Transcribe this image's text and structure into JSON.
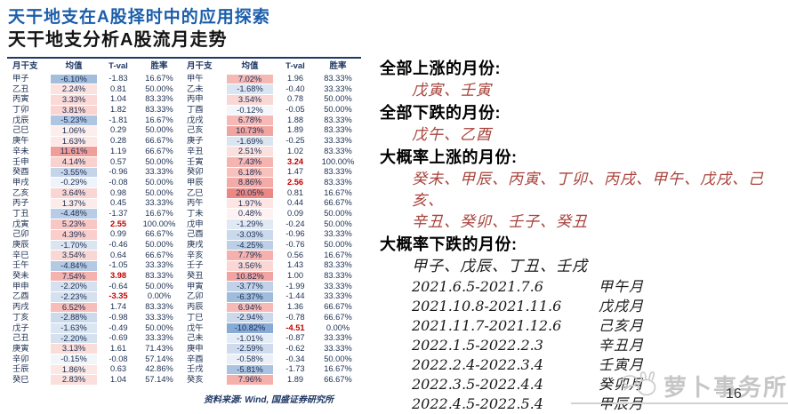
{
  "header": {
    "title": "天干地支在A股择时中的应用探索",
    "subtitle": "天干地支分析A股流月走势"
  },
  "colors": {
    "title_blue": "#1b5eab",
    "table_navy": "#1f3864",
    "tval_red": "#c00000",
    "panel_red": "#a8423a",
    "watermark_gray": "#c6c6c6"
  },
  "table": {
    "columns": [
      "月干支",
      "均值",
      "T-val",
      "胜率"
    ],
    "source": "资料来源: Wind, 国盛证券研究所",
    "left_rows": [
      {
        "g": "甲子",
        "m": "-6.10%",
        "t": "-1.83",
        "w": "16.67%",
        "bg": "#a3bedd",
        "tr": false
      },
      {
        "g": "乙丑",
        "m": "2.24%",
        "t": "0.81",
        "w": "50.00%",
        "bg": "#fbe2e0",
        "tr": false
      },
      {
        "g": "丙寅",
        "m": "3.33%",
        "t": "1.04",
        "w": "83.33%",
        "bg": "#fad9d6",
        "tr": false
      },
      {
        "g": "丁卯",
        "m": "3.81%",
        "t": "1.82",
        "w": "83.33%",
        "bg": "#f9d4d1",
        "tr": false
      },
      {
        "g": "戊辰",
        "m": "-5.23%",
        "t": "-1.81",
        "w": "16.67%",
        "bg": "#afc6e2",
        "tr": false
      },
      {
        "g": "己巳",
        "m": "1.06%",
        "t": "0.29",
        "w": "50.00%",
        "bg": "#fceeec",
        "tr": false
      },
      {
        "g": "庚午",
        "m": "1.63%",
        "t": "0.28",
        "w": "66.67%",
        "bg": "#fce8e6",
        "tr": false
      },
      {
        "g": "辛未",
        "m": "11.61%",
        "t": "1.19",
        "w": "66.67%",
        "bg": "#f09e9a",
        "tr": false
      },
      {
        "g": "壬申",
        "m": "4.14%",
        "t": "0.57",
        "w": "50.00%",
        "bg": "#f9d1ce",
        "tr": false
      },
      {
        "g": "癸酉",
        "m": "-3.55%",
        "t": "-0.96",
        "w": "33.33%",
        "bg": "#c4d4e9",
        "tr": false
      },
      {
        "g": "甲戌",
        "m": "-0.29%",
        "t": "-0.08",
        "w": "50.00%",
        "bg": "#eff3fa",
        "tr": false
      },
      {
        "g": "乙亥",
        "m": "3.64%",
        "t": "0.98",
        "w": "50.00%",
        "bg": "#f9d6d3",
        "tr": false
      },
      {
        "g": "丙子",
        "m": "1.37%",
        "t": "0.45",
        "w": "33.33%",
        "bg": "#fcebe9",
        "tr": false
      },
      {
        "g": "丁丑",
        "m": "-4.48%",
        "t": "-1.37",
        "w": "16.67%",
        "bg": "#b8cce5",
        "tr": false
      },
      {
        "g": "戊寅",
        "m": "5.23%",
        "t": "2.55",
        "w": "100.00%",
        "bg": "#f8c7c3",
        "tr": true
      },
      {
        "g": "己卯",
        "m": "4.39%",
        "t": "0.99",
        "w": "66.67%",
        "bg": "#f9cecb",
        "tr": false
      },
      {
        "g": "庚辰",
        "m": "-1.70%",
        "t": "-0.46",
        "w": "50.00%",
        "bg": "#dbe5f2",
        "tr": false
      },
      {
        "g": "辛巳",
        "m": "3.54%",
        "t": "0.64",
        "w": "66.67%",
        "bg": "#f9d7d4",
        "tr": false
      },
      {
        "g": "壬午",
        "m": "-4.84%",
        "t": "-1.05",
        "w": "33.33%",
        "bg": "#b4cae3",
        "tr": false
      },
      {
        "g": "癸未",
        "m": "7.54%",
        "t": "3.98",
        "w": "83.33%",
        "bg": "#f5b3af",
        "tr": true
      },
      {
        "g": "甲申",
        "m": "-2.20%",
        "t": "-0.64",
        "w": "50.00%",
        "bg": "#d5e1ef",
        "tr": false
      },
      {
        "g": "乙酉",
        "m": "-2.23%",
        "t": "-3.35",
        "w": "0.00%",
        "bg": "#d5e1ef",
        "tr": true
      },
      {
        "g": "丙戌",
        "m": "6.52%",
        "t": "1.74",
        "w": "83.33%",
        "bg": "#f6bdb9",
        "tr": false
      },
      {
        "g": "丁亥",
        "m": "-2.88%",
        "t": "-0.98",
        "w": "33.33%",
        "bg": "#cddaec",
        "tr": false
      },
      {
        "g": "戊子",
        "m": "-1.63%",
        "t": "-0.49",
        "w": "50.00%",
        "bg": "#dce6f2",
        "tr": false
      },
      {
        "g": "己丑",
        "m": "-2.20%",
        "t": "-0.69",
        "w": "33.33%",
        "bg": "#d5e1ef",
        "tr": false
      },
      {
        "g": "庚寅",
        "m": "3.13%",
        "t": "1.61",
        "w": "71.43%",
        "bg": "#fadcd9",
        "tr": false
      },
      {
        "g": "辛卯",
        "m": "-0.15%",
        "t": "-0.08",
        "w": "57.14%",
        "bg": "#f2f5fa",
        "tr": false
      },
      {
        "g": "壬辰",
        "m": "1.86%",
        "t": "0.63",
        "w": "42.86%",
        "bg": "#fce7e5",
        "tr": false
      },
      {
        "g": "癸巳",
        "m": "2.83%",
        "t": "1.04",
        "w": "57.14%",
        "bg": "#fbdfdc",
        "tr": false
      }
    ],
    "right_rows": [
      {
        "g": "甲午",
        "m": "7.02%",
        "t": "1.96",
        "w": "83.33%",
        "bg": "#f5b8b4",
        "tr": false
      },
      {
        "g": "乙未",
        "m": "-1.68%",
        "t": "-0.40",
        "w": "33.33%",
        "bg": "#dbe5f2",
        "tr": false
      },
      {
        "g": "丙申",
        "m": "3.54%",
        "t": "0.78",
        "w": "50.00%",
        "bg": "#f9d7d4",
        "tr": false
      },
      {
        "g": "丁酉",
        "m": "-0.12%",
        "t": "-0.05",
        "w": "50.00%",
        "bg": "#f3f6fb",
        "tr": false
      },
      {
        "g": "戊戌",
        "m": "6.78%",
        "t": "1.88",
        "w": "83.33%",
        "bg": "#f6bab6",
        "tr": false
      },
      {
        "g": "己亥",
        "m": "10.73%",
        "t": "1.89",
        "w": "83.33%",
        "bg": "#f1a5a1",
        "tr": false
      },
      {
        "g": "庚子",
        "m": "-1.69%",
        "t": "-0.25",
        "w": "33.33%",
        "bg": "#dbe5f2",
        "tr": false
      },
      {
        "g": "辛丑",
        "m": "2.51%",
        "t": "1.02",
        "w": "83.33%",
        "bg": "#fbe1de",
        "tr": false
      },
      {
        "g": "壬寅",
        "m": "7.43%",
        "t": "3.24",
        "w": "100.00%",
        "bg": "#f5b4b0",
        "tr": true
      },
      {
        "g": "癸卯",
        "m": "6.18%",
        "t": "1.47",
        "w": "83.33%",
        "bg": "#f7c1bd",
        "tr": false
      },
      {
        "g": "甲辰",
        "m": "8.86%",
        "t": "2.56",
        "w": "83.33%",
        "bg": "#f3aba7",
        "tr": true
      },
      {
        "g": "乙巳",
        "m": "20.05%",
        "t": "0.81",
        "w": "16.67%",
        "bg": "#ec8782",
        "tr": false
      },
      {
        "g": "丙午",
        "m": "1.97%",
        "t": "0.44",
        "w": "66.67%",
        "bg": "#fce5e3",
        "tr": false
      },
      {
        "g": "丁未",
        "m": "0.48%",
        "t": "0.09",
        "w": "50.00%",
        "bg": "#fdf2f1",
        "tr": false
      },
      {
        "g": "戊申",
        "m": "-1.29%",
        "t": "-0.24",
        "w": "50.00%",
        "bg": "#e1e9f4",
        "tr": false
      },
      {
        "g": "己酉",
        "m": "-3.03%",
        "t": "-0.96",
        "w": "33.33%",
        "bg": "#cbd9ec",
        "tr": false
      },
      {
        "g": "庚戌",
        "m": "-4.25%",
        "t": "-0.76",
        "w": "50.00%",
        "bg": "#bbcfe6",
        "tr": false
      },
      {
        "g": "辛亥",
        "m": "7.79%",
        "t": "0.56",
        "w": "16.67%",
        "bg": "#f5b1ad",
        "tr": false
      },
      {
        "g": "壬子",
        "m": "3.56%",
        "t": "1.43",
        "w": "83.33%",
        "bg": "#f9d7d4",
        "tr": false
      },
      {
        "g": "癸丑",
        "m": "10.82%",
        "t": "1.00",
        "w": "83.33%",
        "bg": "#f1a4a0",
        "tr": false
      },
      {
        "g": "甲寅",
        "m": "-3.77%",
        "t": "-1.99",
        "w": "33.33%",
        "bg": "#c1d2e8",
        "tr": false
      },
      {
        "g": "乙卯",
        "m": "-6.37%",
        "t": "-1.44",
        "w": "33.33%",
        "bg": "#a0bcdc",
        "tr": false
      },
      {
        "g": "丙辰",
        "m": "6.94%",
        "t": "1.36",
        "w": "66.67%",
        "bg": "#f6b9b5",
        "tr": false
      },
      {
        "g": "丁巳",
        "m": "-2.94%",
        "t": "-0.78",
        "w": "66.67%",
        "bg": "#ccd9ec",
        "tr": false
      },
      {
        "g": "戊午",
        "m": "-10.82%",
        "t": "-4.51",
        "w": "0.00%",
        "bg": "#87abd5",
        "tr": true
      },
      {
        "g": "己未",
        "m": "-1.01%",
        "t": "-0.87",
        "w": "33.33%",
        "bg": "#e5ecf6",
        "tr": false
      },
      {
        "g": "庚申",
        "m": "-2.59%",
        "t": "-0.62",
        "w": "33.33%",
        "bg": "#d0dcee",
        "tr": false
      },
      {
        "g": "辛酉",
        "m": "-0.58%",
        "t": "-0.34",
        "w": "50.00%",
        "bg": "#ebf0f8",
        "tr": false
      },
      {
        "g": "壬戌",
        "m": "-5.81%",
        "t": "-1.73",
        "w": "16.67%",
        "bg": "#aac3e0",
        "tr": false
      },
      {
        "g": "癸亥",
        "m": "7.96%",
        "t": "1.89",
        "w": "66.67%",
        "bg": "#f5b0ac",
        "tr": false
      }
    ]
  },
  "panel": {
    "sections": [
      {
        "heading": "全部上涨的月份:",
        "items": [
          "戊寅、壬寅"
        ],
        "item_style": "red"
      },
      {
        "heading": "全部下跌的月份:",
        "items": [
          "戊午、乙酉"
        ],
        "item_style": "red"
      },
      {
        "heading": "大概率上涨的月份:",
        "items": [
          "癸未、甲辰、丙寅、丁卯、丙戌、甲午、戊戌、己亥、",
          "辛丑、癸卯、壬子、癸丑"
        ],
        "item_style": "red"
      },
      {
        "heading": "大概率下跌的月份:",
        "items": [
          "甲子、戊辰、丁丑、壬戌"
        ],
        "item_style": "black"
      }
    ],
    "schedule": [
      {
        "range": "2021.6.5-2021.7.6",
        "month": "甲午月"
      },
      {
        "range": "2021.10.8-2021.11.6",
        "month": "戊戌月"
      },
      {
        "range": "2021.11.7-2021.12.6",
        "month": "己亥月"
      },
      {
        "range": "2022.1.5-2022.2.3",
        "month": "辛丑月"
      },
      {
        "range": "2022.2.4-2022.3.4",
        "month": "壬寅月"
      },
      {
        "range": "2022.3.5-2022.4.4",
        "month": "癸卯月"
      },
      {
        "range": "2022.4.5-2022.5.4",
        "month": "甲辰月"
      }
    ]
  },
  "footer": {
    "watermark": "萝卜事务所",
    "page_number": "16"
  }
}
